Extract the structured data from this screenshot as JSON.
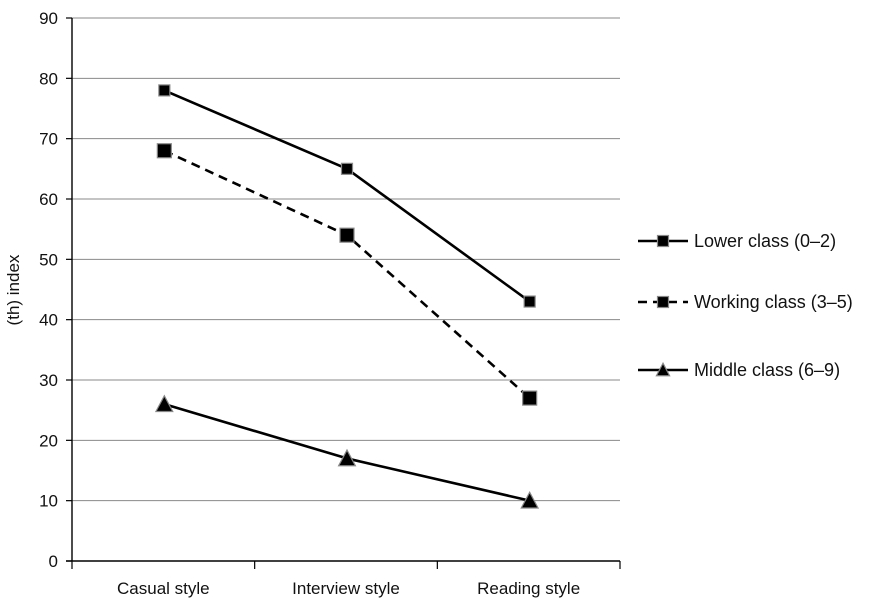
{
  "chart_data": {
    "type": "line",
    "categories": [
      "Casual style",
      "Interview style",
      "Reading style"
    ],
    "ylabel": "(th) index",
    "xlabel": "",
    "ylim": [
      0,
      90
    ],
    "yticks": [
      0,
      10,
      20,
      30,
      40,
      50,
      60,
      70,
      80,
      90
    ],
    "grid": true,
    "legend_position": "right",
    "series": [
      {
        "name": "Lower class (0–2)",
        "values": [
          78,
          65,
          43
        ],
        "marker": "square",
        "line": "solid",
        "color": "#000000"
      },
      {
        "name": "Working class (3–5)",
        "values": [
          68,
          54,
          27
        ],
        "marker": "square",
        "line": "dashed",
        "color": "#000000"
      },
      {
        "name": "Middle class (6–9)",
        "values": [
          26,
          17,
          10
        ],
        "marker": "triangle",
        "line": "solid",
        "color": "#000000"
      }
    ]
  }
}
